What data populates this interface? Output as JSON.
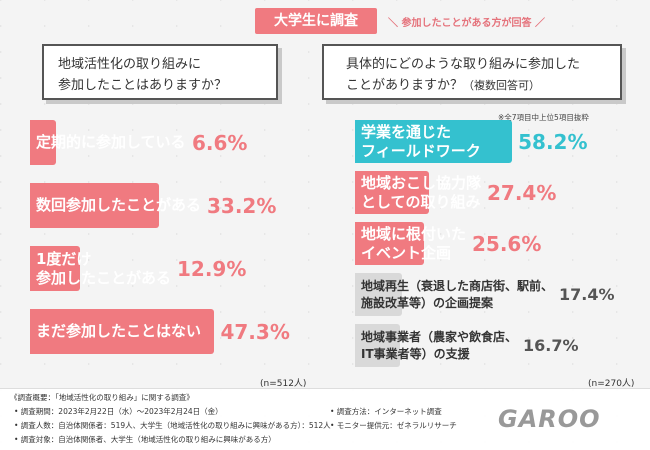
{
  "header": {
    "tag": "大学生に調査",
    "subtag": "＼ 参加したことがある方が回答 ／"
  },
  "left_question": {
    "line1": "地域活性化の取り組みに",
    "line2": "参加したことはありますか？"
  },
  "right_question": {
    "line1": "具体的にどのような取り組みに参加した",
    "line2": "ことがありますか？",
    "line2_small": "（複数回答可）"
  },
  "right_note": "※全7項目中上位5項目抜粋",
  "chart_data": [
    {
      "type": "bar",
      "orientation": "horizontal",
      "categories": [
        "定期的に参加している",
        "数回参加したことがある",
        "1度だけ参加したことがある",
        "まだ参加したことはない"
      ],
      "category_lines": [
        [
          "定期的に参加している"
        ],
        [
          "数回参加したことがある"
        ],
        [
          "1度だけ",
          "参加したことがある"
        ],
        [
          "まだ参加したことはない"
        ]
      ],
      "values": [
        6.6,
        33.2,
        12.9,
        47.3
      ],
      "value_labels": [
        "6.6%",
        "33.2%",
        "12.9%",
        "47.3%"
      ],
      "unit": "%",
      "xlim": [
        0,
        100
      ],
      "colors": [
        "#f07a80",
        "#f07a80",
        "#f07a80",
        "#f07a80"
      ],
      "sample": "(n=512人)"
    },
    {
      "type": "bar",
      "orientation": "horizontal",
      "categories": [
        "学業を通じたフィールドワーク",
        "地域おこし協力隊としての取り組み",
        "地域に根付いたイベント企画",
        "地域再生（衰退した商店街、駅前、施設改革等）の企画提案",
        "地域事業者（農家や飲食店、IT事業者等）の支援"
      ],
      "category_lines": [
        [
          "学業を通じた",
          "フィールドワーク"
        ],
        [
          "地域おこし協力隊",
          "としての取り組み"
        ],
        [
          "地域に根付いた",
          "イベント企画"
        ],
        [
          "地域再生（衰退した商店街、駅前、",
          "施設改革等）の企画提案"
        ],
        [
          "地域事業者（農家や飲食店、",
          "IT事業者等）の支援"
        ]
      ],
      "values": [
        58.2,
        27.4,
        25.6,
        17.4,
        16.7
      ],
      "value_labels": [
        "58.2%",
        "27.4%",
        "25.6%",
        "17.4%",
        "16.7%"
      ],
      "unit": "%",
      "xlim": [
        0,
        100
      ],
      "colors": [
        "#34c1cf",
        "#f07a80",
        "#f07a80",
        "#d9d9d9",
        "#d9d9d9"
      ],
      "sample": "(n=270人)"
    }
  ],
  "footer": {
    "title": "《調査概要：「地域活性化の取り組み」に関する調査》",
    "lines_left": [
      "• 調査期間：2023年2月22日（水）〜2023年2月24日（金）",
      "• 調査人数：自治体関係者：519人、大学生（地域活性化の取り組みに興味がある方）：512人",
      "• 調査対象：自治体関係者、大学生（地域活性化の取り組みに興味がある方）"
    ],
    "lines_right": [
      "• 調査方法：インターネット調査",
      "• モニター提供元：ゼネラルリサーチ"
    ],
    "logo": "GAROO"
  },
  "colors": {
    "pink": "#f07a80",
    "teal": "#34c1cf",
    "gray": "#d9d9d9"
  }
}
